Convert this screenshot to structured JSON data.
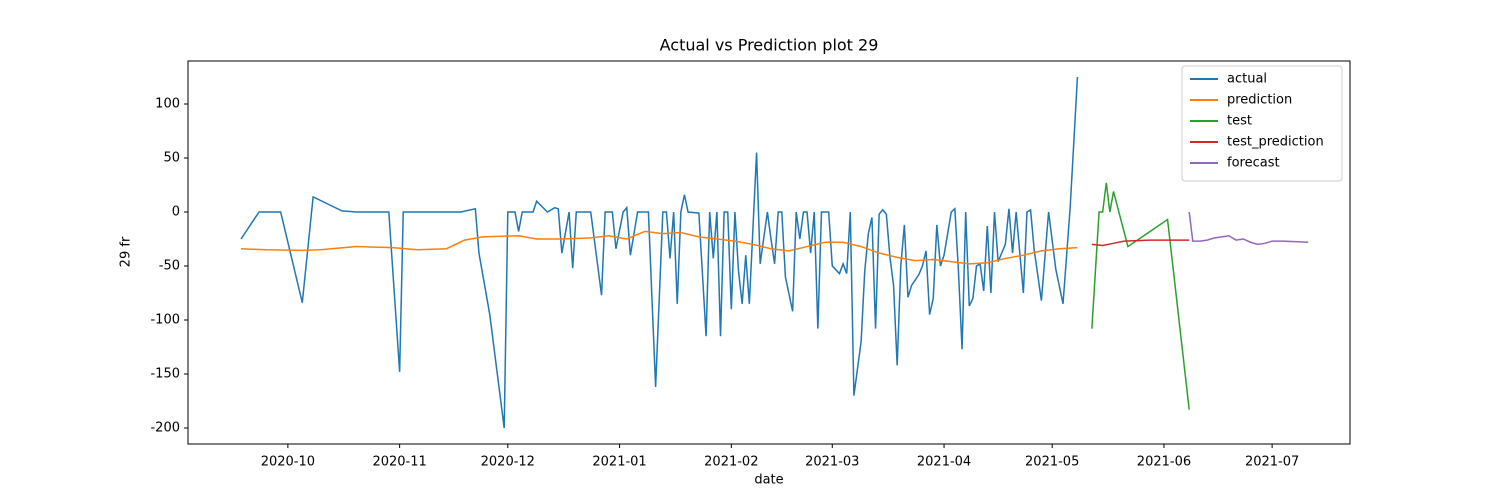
{
  "chart_data": {
    "type": "line",
    "title": "Actual vs Prediction plot 29",
    "xlabel": "date",
    "ylabel": "29 fr",
    "xlim": [
      18508.3,
      18830.6
    ],
    "ylim": [
      -214.8,
      139.8
    ],
    "xticks": [
      {
        "value": 18536,
        "label": "2020-10"
      },
      {
        "value": 18567,
        "label": "2020-11"
      },
      {
        "value": 18597,
        "label": "2020-12"
      },
      {
        "value": 18628,
        "label": "2021-01"
      },
      {
        "value": 18659,
        "label": "2021-02"
      },
      {
        "value": 18687,
        "label": "2021-03"
      },
      {
        "value": 18718,
        "label": "2021-04"
      },
      {
        "value": 18748,
        "label": "2021-05"
      },
      {
        "value": 18779,
        "label": "2021-06"
      },
      {
        "value": 18809,
        "label": "2021-07"
      }
    ],
    "yticks": [
      -200,
      -150,
      -100,
      -50,
      0,
      50,
      100
    ],
    "legend": "upper right",
    "grid": false,
    "series": [
      {
        "name": "actual",
        "color": "#1f77b4",
        "x": [
          18523,
          18528,
          18534,
          18540,
          18543,
          18551,
          18555,
          18564,
          18567,
          18568,
          18584,
          18588,
          18589,
          18592,
          18596,
          18597,
          18599,
          18600,
          18601,
          18604,
          18605,
          18608,
          18610,
          18611,
          18612,
          18614,
          18615,
          18616,
          18620,
          18623,
          18624,
          18626,
          18627,
          18629,
          18630,
          18631,
          18633,
          18636,
          18638,
          18640,
          18641,
          18642,
          18643,
          18644,
          18645,
          18646,
          18647,
          18650,
          18652,
          18653,
          18654,
          18655,
          18656,
          18657,
          18658,
          18659,
          18660,
          18661,
          18662,
          18663,
          18664,
          18666,
          18667,
          18669,
          18670,
          18671,
          18672,
          18673,
          18674,
          18676,
          18677,
          18678,
          18679,
          18680,
          18681,
          18682,
          18683,
          18684,
          18686,
          18687,
          18689,
          18690,
          18691,
          18692,
          18693,
          18695,
          18696,
          18697,
          18698,
          18699,
          18700,
          18701,
          18702,
          18703,
          18704,
          18705,
          18706,
          18707,
          18708,
          18709,
          18711,
          18712,
          18713,
          18714,
          18715,
          18716,
          18717,
          18718,
          18720,
          18721,
          18722,
          18723,
          18724,
          18725,
          18726,
          18727,
          18728,
          18729,
          18730,
          18731,
          18732,
          18733,
          18735,
          18736,
          18737,
          18738,
          18740,
          18741,
          18742,
          18743,
          18745,
          18747,
          18749,
          18751,
          18753,
          18755
        ],
        "values": [
          -25,
          0,
          0,
          -84,
          14,
          1,
          0,
          0,
          -148,
          0,
          0,
          3,
          -38,
          -95,
          -200,
          0,
          0,
          -18,
          0,
          0,
          10,
          0,
          4,
          3,
          -38,
          0,
          -52,
          0,
          0,
          -77,
          0,
          0,
          -34,
          0,
          4,
          -40,
          0,
          0,
          -162,
          0,
          0,
          -43,
          0,
          -85,
          0,
          16,
          0,
          -1,
          -115,
          0,
          -43,
          0,
          -115,
          0,
          0,
          -90,
          0,
          -55,
          -85,
          -40,
          -85,
          55,
          -48,
          0,
          -25,
          -48,
          0,
          0,
          -60,
          -92,
          0,
          -25,
          0,
          0,
          -38,
          0,
          -108,
          0,
          0,
          -50,
          -57,
          -48,
          -57,
          0,
          -170,
          -120,
          -55,
          -20,
          -5,
          -108,
          -2,
          2,
          -2,
          -42,
          -68,
          -142,
          -50,
          -12,
          -79,
          -68,
          -58,
          -50,
          -36,
          -95,
          -80,
          -12,
          -50,
          -40,
          0,
          3,
          -55,
          -127,
          0,
          -87,
          -80,
          -50,
          -48,
          -73,
          -13,
          -75,
          0,
          -46,
          -30,
          3,
          -38,
          0,
          -75,
          0,
          2,
          -35,
          -82,
          0,
          -53,
          -85,
          5,
          125
        ]
      },
      {
        "name": "prediction",
        "color": "#ff7f0e",
        "x": [
          18523,
          18530,
          18540,
          18545,
          18555,
          18565,
          18572,
          18580,
          18585,
          18590,
          18600,
          18605,
          18612,
          18620,
          18625,
          18630,
          18635,
          18640,
          18645,
          18650,
          18655,
          18660,
          18665,
          18670,
          18675,
          18680,
          18685,
          18690,
          18695,
          18700,
          18705,
          18710,
          18715,
          18720,
          18725,
          18730,
          18735,
          18740,
          18745,
          18750,
          18755
        ],
        "values": [
          -34,
          -35,
          -35.5,
          -35,
          -32,
          -33,
          -35,
          -34,
          -26,
          -23,
          -22,
          -25,
          -25,
          -24,
          -22,
          -25,
          -18,
          -20,
          -19,
          -23,
          -25,
          -27,
          -30,
          -34,
          -36,
          -32,
          -28,
          -28,
          -32,
          -38,
          -42,
          -45,
          -44,
          -46,
          -48,
          -47,
          -43,
          -40,
          -36,
          -34,
          -33
        ]
      },
      {
        "name": "test",
        "color": "#2ca02c",
        "x": [
          18759,
          18761,
          18762,
          18763,
          18764,
          18765,
          18769,
          18780,
          18786
        ],
        "values": [
          -108,
          0,
          0,
          27,
          0,
          19,
          -32,
          -7,
          -183
        ]
      },
      {
        "name": "test_prediction",
        "color": "#d62728",
        "x": [
          18759,
          18762,
          18765,
          18768,
          18775,
          18786
        ],
        "values": [
          -30,
          -31,
          -29,
          -27,
          -26,
          -26
        ]
      },
      {
        "name": "forecast",
        "color": "#9467bd",
        "x": [
          18786,
          18787,
          18789,
          18791,
          18793,
          18795,
          18797,
          18799,
          18801,
          18803,
          18805,
          18807,
          18809,
          18812,
          18816,
          18819
        ],
        "values": [
          0,
          -27,
          -27,
          -26,
          -24,
          -23,
          -22,
          -26,
          -25,
          -28,
          -30,
          -29,
          -27,
          -27,
          -27.5,
          -28
        ]
      }
    ]
  }
}
